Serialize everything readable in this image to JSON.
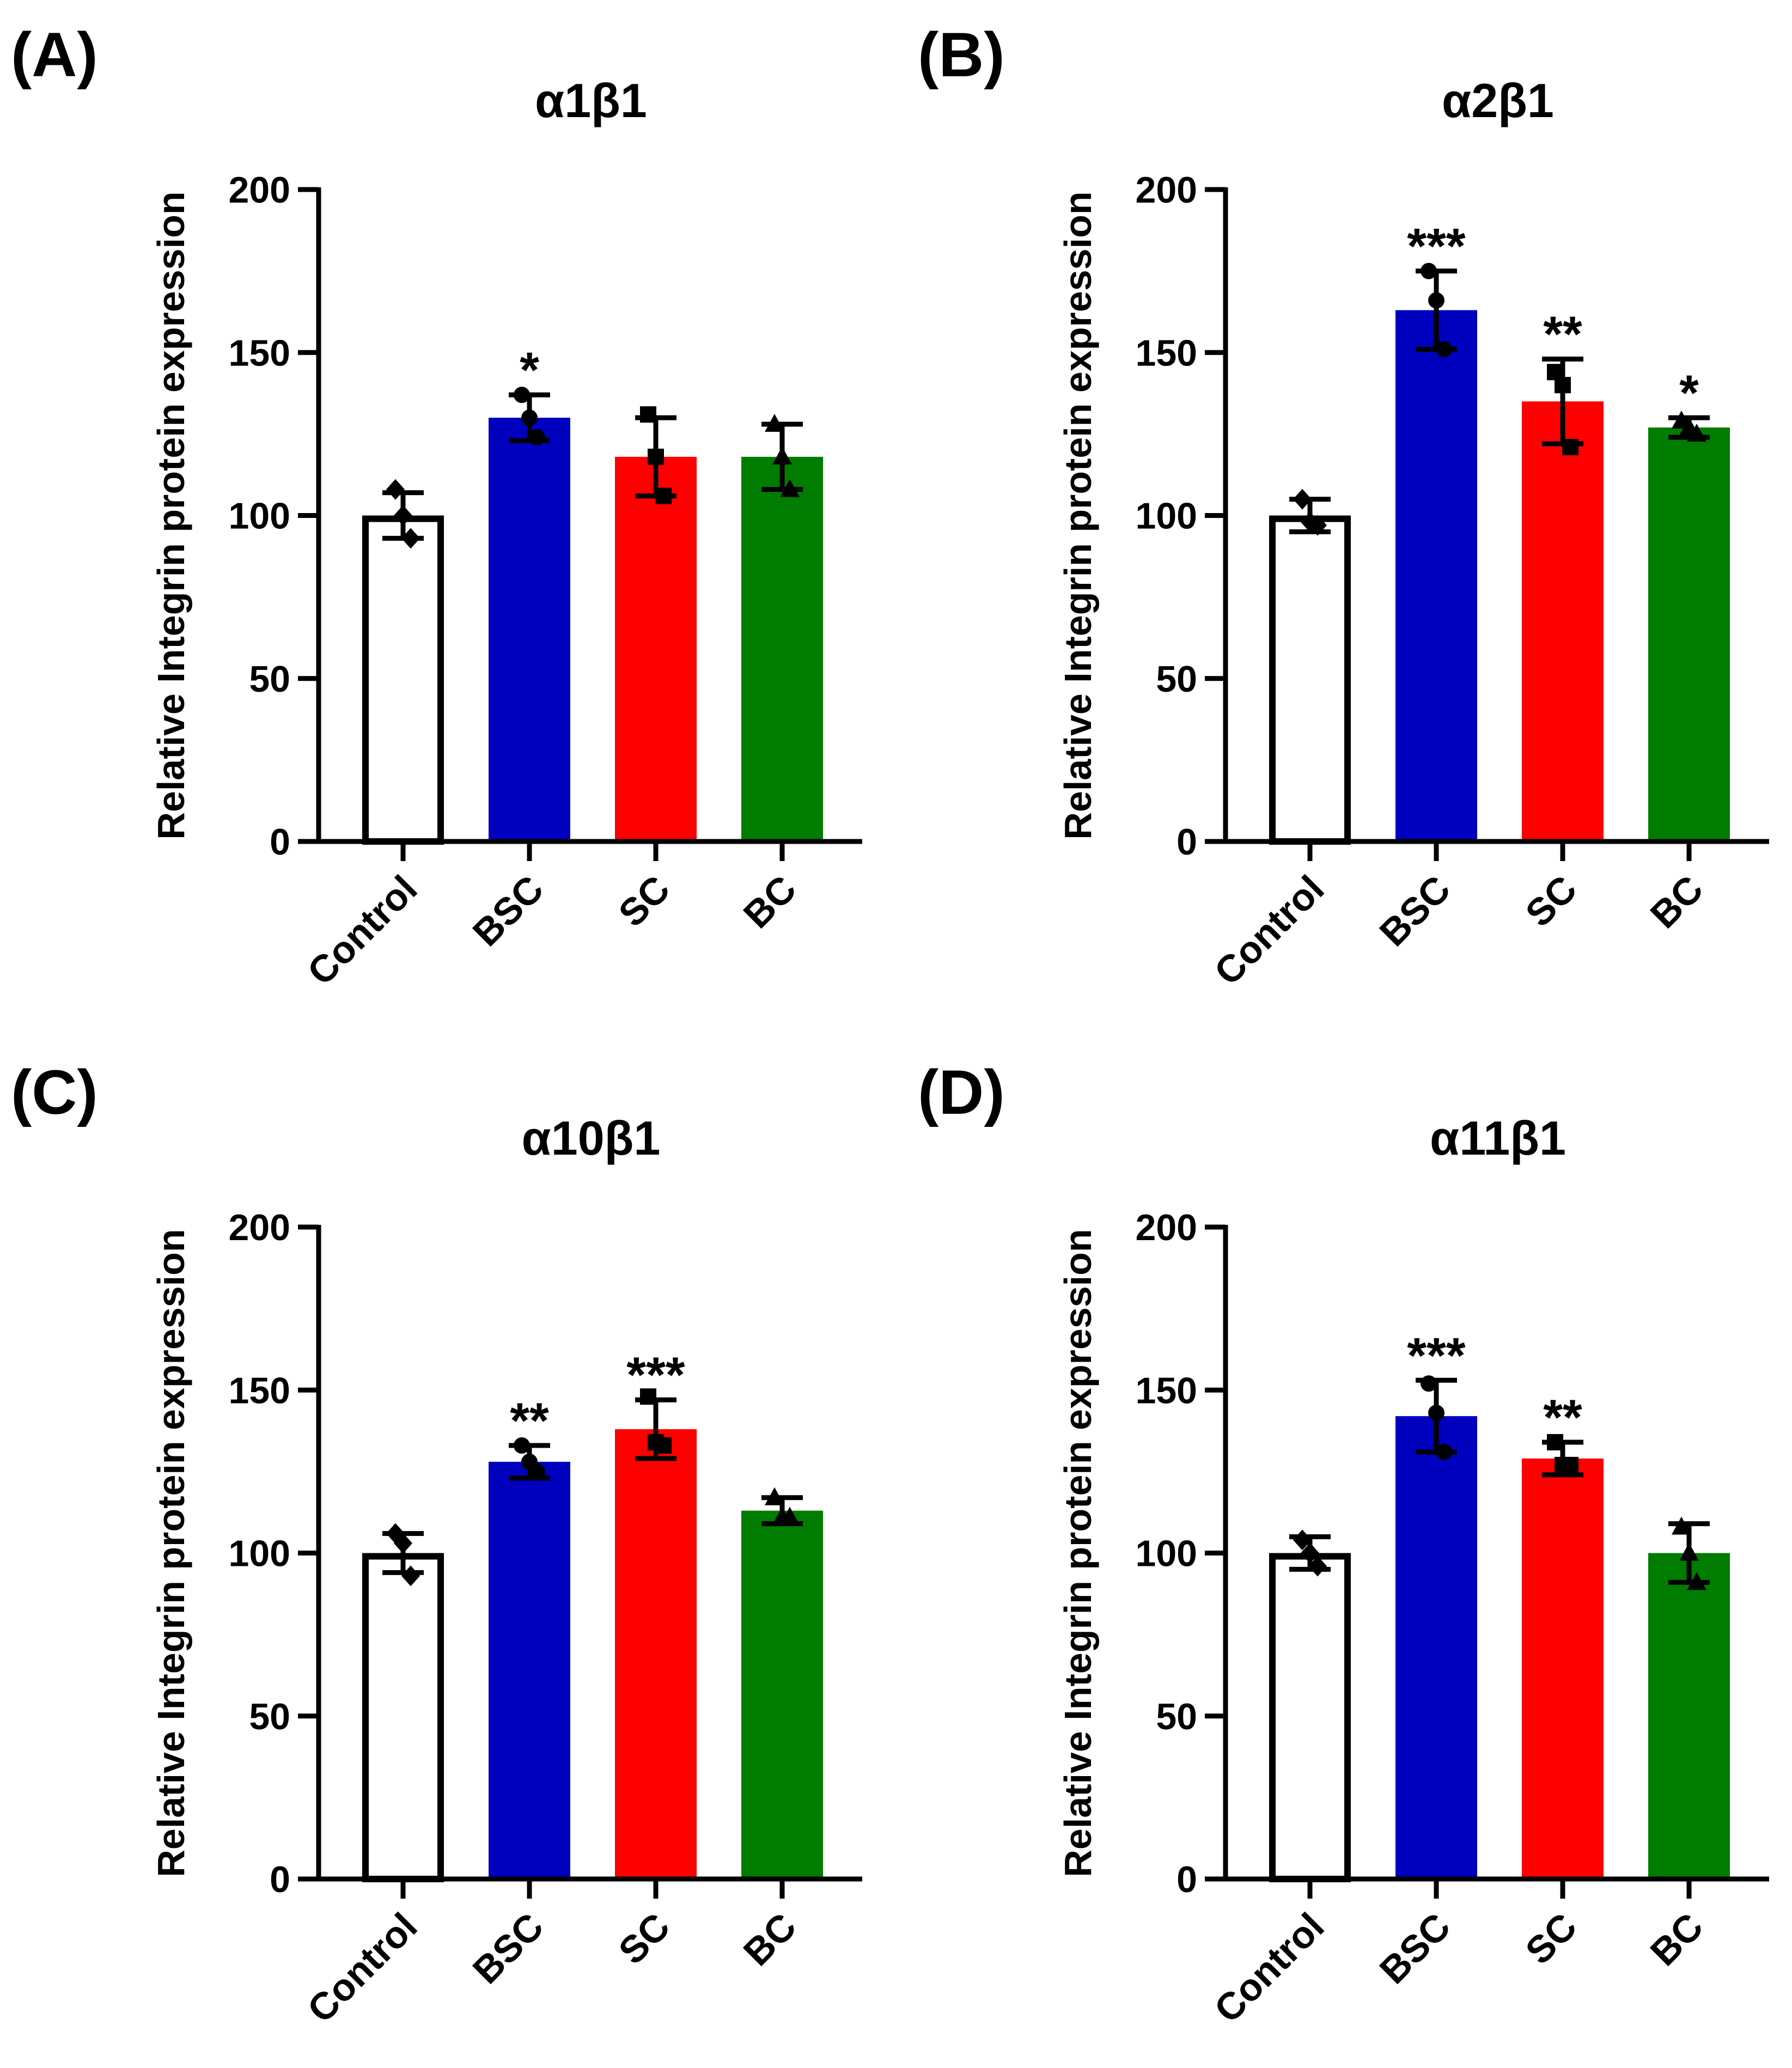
{
  "colors": {
    "axis": "#000000",
    "control": "#ffffff",
    "bsc": "#0000bf",
    "sc": "#ff0000",
    "bc": "#007c00"
  },
  "chart_data": [
    {
      "panel_label": "(A)",
      "title": "α1β1",
      "type": "bar",
      "ylabel": "Relative Integrin protein expression",
      "ylim": [
        0,
        200
      ],
      "yticks": [
        "0",
        "50",
        "100",
        "150",
        "200"
      ],
      "categories": [
        "Control",
        "BSC",
        "SC",
        "BC"
      ],
      "values": [
        100,
        130,
        118,
        118
      ],
      "errors": [
        7,
        7,
        12,
        10
      ],
      "markers": [
        "diamond",
        "circle",
        "square",
        "triangle"
      ],
      "points": [
        [
          108,
          100,
          93
        ],
        [
          137,
          130,
          124
        ],
        [
          131,
          118,
          106
        ],
        [
          128,
          118,
          108
        ]
      ],
      "significance": [
        "",
        "*",
        "",
        ""
      ]
    },
    {
      "panel_label": "(B)",
      "title": "α2β1",
      "type": "bar",
      "ylabel": "Relative Integrin protein expression",
      "ylim": [
        0,
        200
      ],
      "yticks": [
        "0",
        "50",
        "100",
        "150",
        "200"
      ],
      "categories": [
        "Control",
        "BSC",
        "SC",
        "BC"
      ],
      "values": [
        100,
        163,
        135,
        127
      ],
      "errors": [
        5,
        12,
        13,
        3
      ],
      "markers": [
        "diamond",
        "circle",
        "square",
        "triangle"
      ],
      "points": [
        [
          105,
          98,
          97
        ],
        [
          175,
          166,
          151
        ],
        [
          144,
          140,
          121
        ],
        [
          129,
          127,
          125
        ]
      ],
      "significance": [
        "",
        "***",
        "**",
        "*"
      ]
    },
    {
      "panel_label": "(C)",
      "title": "α10β1",
      "type": "bar",
      "ylabel": "Relative Integrin protein expression",
      "ylim": [
        0,
        200
      ],
      "yticks": [
        "0",
        "50",
        "100",
        "150",
        "200"
      ],
      "categories": [
        "Control",
        "BSC",
        "SC",
        "BC"
      ],
      "values": [
        100,
        128,
        138,
        113
      ],
      "errors": [
        6,
        5,
        9,
        4
      ],
      "markers": [
        "diamond",
        "circle",
        "square",
        "triangle"
      ],
      "points": [
        [
          106,
          103,
          93
        ],
        [
          133,
          128,
          125
        ],
        [
          148,
          134,
          133
        ],
        [
          117,
          111,
          111
        ]
      ],
      "significance": [
        "",
        "**",
        "***",
        ""
      ]
    },
    {
      "panel_label": "(D)",
      "title": "α11β1",
      "type": "bar",
      "ylabel": "Relative Integrin protein expression",
      "ylim": [
        0,
        200
      ],
      "yticks": [
        "0",
        "50",
        "100",
        "150",
        "200"
      ],
      "categories": [
        "Control",
        "BSC",
        "SC",
        "BC"
      ],
      "values": [
        100,
        142,
        129,
        100
      ],
      "errors": [
        5,
        11,
        5,
        9
      ],
      "markers": [
        "diamond",
        "circle",
        "square",
        "triangle"
      ],
      "points": [
        [
          104,
          100,
          96
        ],
        [
          152,
          143,
          131
        ],
        [
          134,
          127,
          127
        ],
        [
          108,
          100,
          91
        ]
      ],
      "significance": [
        "",
        "***",
        "**",
        ""
      ]
    }
  ]
}
